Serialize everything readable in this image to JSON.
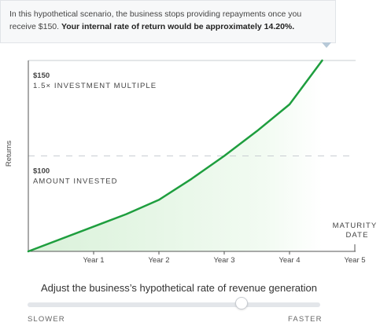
{
  "tooltip": {
    "text": "In this hypothetical scenario, the business stops providing repayments once you receive $150. ",
    "emphasis": "Your internal rate of return would be approximately 14.20%."
  },
  "chart_data": {
    "type": "area",
    "ylabel": "Returns",
    "categories": [
      "Year 1",
      "Year 2",
      "Year 3",
      "Year 4",
      "Year 5"
    ],
    "xlim": [
      0,
      5
    ],
    "ylim": [
      50,
      150
    ],
    "series": [
      {
        "x": [
          0,
          1,
          1.5,
          2,
          2.5,
          3,
          3.5,
          4,
          4.5
        ],
        "y": [
          50,
          63,
          69.5,
          77,
          88,
          100,
          113,
          127,
          150
        ],
        "color": "#1e9e3e"
      }
    ],
    "reference_lines": [
      {
        "value": 150,
        "label": "$150",
        "sublabel": "1.5× INVESTMENT MULTIPLE"
      },
      {
        "value": 100,
        "label": "$100",
        "sublabel": "AMOUNT INVESTED"
      }
    ],
    "maturity_label": [
      "MATURITY",
      "DATE"
    ]
  },
  "slider": {
    "label": "Adjust the business’s hypothetical rate of revenue generation",
    "min_label": "SLOWER",
    "max_label": "FASTER",
    "value": 0.73
  }
}
